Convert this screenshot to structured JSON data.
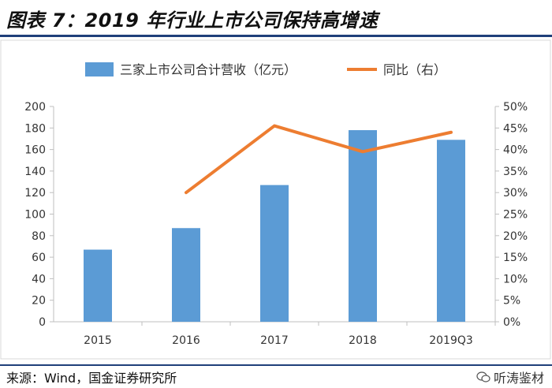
{
  "title": "图表 7：2019 年行业上市公司保持高增速",
  "source": "来源：Wind，国金证券研究所",
  "watermark": "听涛鉴材",
  "chart_data": {
    "type": "bar",
    "categories": [
      "2015",
      "2016",
      "2017",
      "2018",
      "2019Q3"
    ],
    "series": [
      {
        "name": "三家上市公司合计营收（亿元）",
        "type": "bar",
        "axis": "left",
        "values": [
          67,
          87,
          127,
          178,
          169
        ],
        "color": "#5b9bd5"
      },
      {
        "name": "同比（右）",
        "type": "line",
        "axis": "right",
        "values": [
          null,
          30,
          45.5,
          39.5,
          44
        ],
        "color": "#ed7d31"
      }
    ],
    "y_left": {
      "min": 0,
      "max": 200,
      "ticks": [
        "0",
        "20",
        "40",
        "60",
        "80",
        "100",
        "120",
        "140",
        "160",
        "180",
        "200"
      ]
    },
    "y_right": {
      "min": 0,
      "max": 50,
      "ticks": [
        "0%",
        "5%",
        "10%",
        "15%",
        "20%",
        "25%",
        "30%",
        "35%",
        "40%",
        "45%",
        "50%"
      ]
    },
    "legend_position": "top",
    "grid": false
  }
}
